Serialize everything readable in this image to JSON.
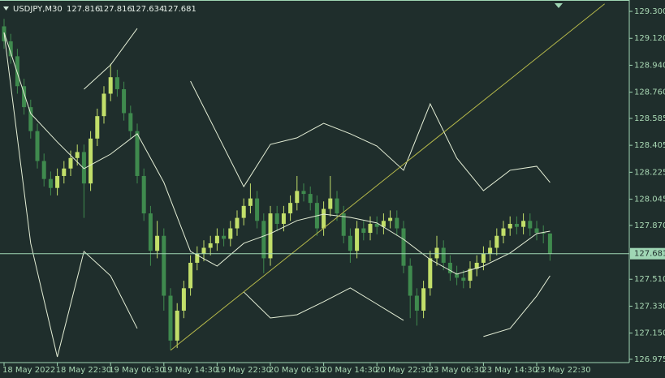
{
  "chart_data": {
    "type": "candlestick",
    "title": "USDJPY,M30",
    "header_values": [
      127.816,
      127.816,
      127.634,
      127.681
    ],
    "categories": [
      "18 May 2022",
      null,
      null,
      null,
      null,
      null,
      null,
      null,
      "18 May 22:30",
      null,
      null,
      null,
      null,
      null,
      null,
      null,
      "19 May 06:30",
      null,
      null,
      null,
      null,
      null,
      null,
      null,
      "19 May 14:30",
      null,
      null,
      null,
      null,
      null,
      null,
      null,
      "19 May 22:30",
      null,
      null,
      null,
      null,
      null,
      null,
      null,
      "20 May 06:30",
      null,
      null,
      null,
      null,
      null,
      null,
      null,
      "20 May 14:30",
      null,
      null,
      null,
      null,
      null,
      null,
      null,
      "20 May 22:30",
      null,
      null,
      null,
      null,
      null,
      null,
      null,
      "23 May 06:30",
      null,
      null,
      null,
      null,
      null,
      null,
      null,
      "23 May 14:30",
      null,
      null,
      null,
      null,
      null,
      null,
      null,
      "23 May 22:30",
      null,
      null
    ],
    "open": [
      129.2,
      129.1,
      129.0,
      128.8,
      128.66,
      128.5,
      128.3,
      128.18,
      128.12,
      128.2,
      128.25,
      128.32,
      128.36,
      128.15,
      128.45,
      128.6,
      128.75,
      128.86,
      128.78,
      128.62,
      128.5,
      128.2,
      127.95,
      127.7,
      127.8,
      127.4,
      127.1,
      127.3,
      127.45,
      127.62,
      127.68,
      127.72,
      127.75,
      127.8,
      127.78,
      127.85,
      127.92,
      128.0,
      128.05,
      127.9,
      127.65,
      127.95,
      127.88,
      127.95,
      128.02,
      128.1,
      128.08,
      128.02,
      127.85,
      127.98,
      128.05,
      127.95,
      127.8,
      127.7,
      127.85,
      127.82,
      127.88,
      127.86,
      127.9,
      127.92,
      127.85,
      127.6,
      127.4,
      127.3,
      127.45,
      127.65,
      127.72,
      127.62,
      127.55,
      127.52,
      127.5,
      127.58,
      127.62,
      127.68,
      127.72,
      127.8,
      127.85,
      127.88,
      127.86,
      127.9,
      127.85,
      127.82,
      127.816
    ],
    "high": [
      129.25,
      129.15,
      129.05,
      128.85,
      128.71,
      128.55,
      128.35,
      128.23,
      128.25,
      128.3,
      128.37,
      128.41,
      128.41,
      128.5,
      128.65,
      128.8,
      128.95,
      128.91,
      128.83,
      128.67,
      128.55,
      128.25,
      128.0,
      127.9,
      127.85,
      127.45,
      127.35,
      127.5,
      127.67,
      127.73,
      127.77,
      127.8,
      127.85,
      127.85,
      127.9,
      127.97,
      128.05,
      128.15,
      128.1,
      127.95,
      128.0,
      128.0,
      128.0,
      128.07,
      128.2,
      128.15,
      128.13,
      128.07,
      128.03,
      128.2,
      128.1,
      128.0,
      127.85,
      127.9,
      127.9,
      127.93,
      127.93,
      127.95,
      127.97,
      127.97,
      127.9,
      127.65,
      127.45,
      127.5,
      127.7,
      127.8,
      127.77,
      127.67,
      127.6,
      127.57,
      127.63,
      127.67,
      127.73,
      127.77,
      127.85,
      127.9,
      127.93,
      127.93,
      127.95,
      127.95,
      127.9,
      127.87,
      127.816
    ],
    "low": [
      129.05,
      128.95,
      128.75,
      128.61,
      128.45,
      128.25,
      128.13,
      128.07,
      128.07,
      128.15,
      128.2,
      128.27,
      127.92,
      128.1,
      128.4,
      128.55,
      128.7,
      128.73,
      128.57,
      128.45,
      128.15,
      127.9,
      127.6,
      127.65,
      127.3,
      127.04,
      127.05,
      127.25,
      127.4,
      127.57,
      127.63,
      127.67,
      127.7,
      127.73,
      127.73,
      127.8,
      127.87,
      127.95,
      127.85,
      127.55,
      127.6,
      127.83,
      127.83,
      127.9,
      127.97,
      128.03,
      127.97,
      127.8,
      127.8,
      127.93,
      127.9,
      127.75,
      127.62,
      127.65,
      127.77,
      127.77,
      127.81,
      127.81,
      127.85,
      127.8,
      127.55,
      127.25,
      127.2,
      127.25,
      127.4,
      127.6,
      127.57,
      127.5,
      127.47,
      127.45,
      127.45,
      127.53,
      127.57,
      127.63,
      127.67,
      127.75,
      127.8,
      127.81,
      127.81,
      127.8,
      127.77,
      127.75,
      127.634
    ],
    "close": [
      129.1,
      129.0,
      128.8,
      128.66,
      128.5,
      128.3,
      128.18,
      128.12,
      128.2,
      128.25,
      128.32,
      128.36,
      128.15,
      128.45,
      128.6,
      128.75,
      128.86,
      128.78,
      128.62,
      128.5,
      128.2,
      127.95,
      127.7,
      127.8,
      127.4,
      127.1,
      127.3,
      127.45,
      127.62,
      127.68,
      127.72,
      127.75,
      127.8,
      127.78,
      127.85,
      127.92,
      128.0,
      128.05,
      127.9,
      127.65,
      127.95,
      127.88,
      127.95,
      128.02,
      128.1,
      128.08,
      128.02,
      127.85,
      127.98,
      128.05,
      127.95,
      127.8,
      127.7,
      127.85,
      127.82,
      127.88,
      127.86,
      127.9,
      127.92,
      127.85,
      127.6,
      127.4,
      127.3,
      127.45,
      127.65,
      127.72,
      127.62,
      127.55,
      127.52,
      127.5,
      127.58,
      127.62,
      127.68,
      127.72,
      127.8,
      127.85,
      127.88,
      127.86,
      127.9,
      127.85,
      127.82,
      127.816,
      127.681
    ],
    "up_color": "#c2df6a",
    "down_color": "#3f8a4e",
    "band_x": [
      0,
      4,
      8,
      12,
      16,
      20,
      24,
      28,
      32,
      36,
      40,
      44,
      48,
      52,
      56,
      60,
      64,
      68,
      72,
      76,
      80,
      82
    ],
    "bands": [
      {
        "color": "#e4eed6",
        "values": [
          null,
          null,
          null,
          128.78,
          128.942,
          129.186,
          null,
          128.834,
          128.482,
          128.129,
          128.411,
          128.455,
          128.552,
          128.482,
          128.4,
          128.238,
          128.682,
          128.319,
          128.102,
          128.238,
          128.265,
          128.157
        ]
      },
      {
        "color": "#e4eed6",
        "values": [
          129.159,
          128.617,
          128.427,
          128.249,
          128.346,
          128.482,
          128.157,
          127.696,
          127.598,
          127.75,
          127.815,
          127.902,
          127.945,
          127.923,
          127.886,
          127.777,
          127.642,
          127.544,
          127.598,
          127.685,
          127.815,
          127.831
        ]
      },
      {
        "color": "#e4eed6",
        "values": [
          129.159,
          127.75,
          126.991,
          127.696,
          127.533,
          127.181,
          null,
          null,
          null,
          127.425,
          127.251,
          127.273,
          127.36,
          127.452,
          127.344,
          127.235,
          null,
          null,
          127.127,
          127.181,
          127.398,
          127.533
        ]
      }
    ],
    "trendline": {
      "x": [
        25,
        90.2
      ],
      "y": [
        127.035,
        129.35
      ],
      "color": "#b5b84a"
    },
    "current_price": 127.681,
    "price_line_color": "#9fd6b4",
    "ylim": [
      126.953,
      129.376
    ],
    "yticks": [
      {
        "value": 129.3,
        "label": "129.300"
      },
      {
        "value": 129.12,
        "label": "129.120"
      },
      {
        "value": 128.94,
        "label": "128.940"
      },
      {
        "value": 128.76,
        "label": "128.760"
      },
      {
        "value": 128.585,
        "label": "128.585"
      },
      {
        "value": 128.405,
        "label": "128.405"
      },
      {
        "value": 128.225,
        "label": "128.225"
      },
      {
        "value": 128.045,
        "label": "128.045"
      },
      {
        "value": 127.87,
        "label": "127.870"
      },
      {
        "value": 127.51,
        "label": "127.510"
      },
      {
        "value": 127.33,
        "label": "127.330"
      },
      {
        "value": 127.15,
        "label": "127.150"
      },
      {
        "value": 126.975,
        "label": "126.975"
      }
    ]
  }
}
